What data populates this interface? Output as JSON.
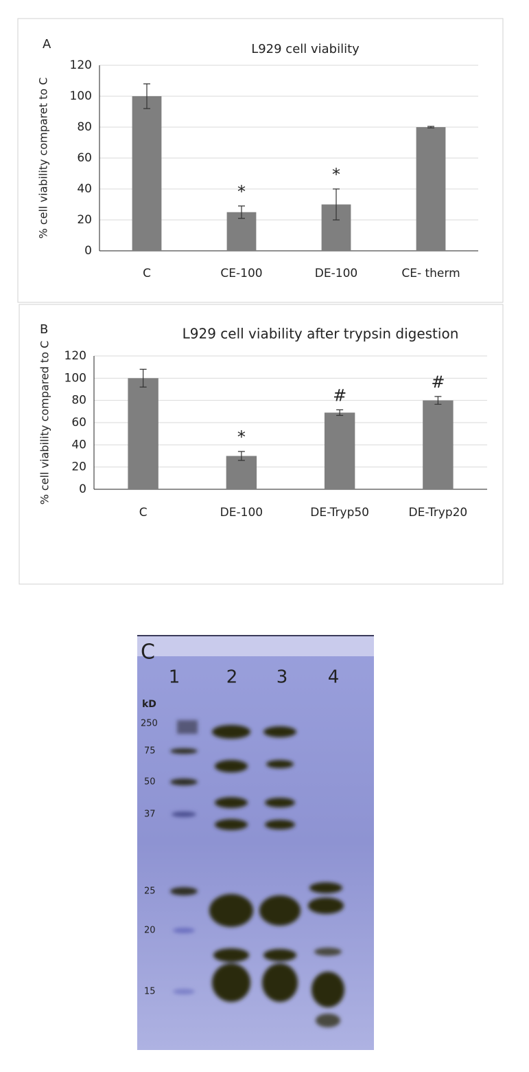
{
  "chart_data": [
    {
      "type": "bar",
      "panel": "A",
      "title": "L929 cell viability",
      "y_label": "% cell viability comparet to C",
      "categories": [
        "C",
        "CE-100",
        "DE-100",
        "CE- therm"
      ],
      "values": [
        100,
        25,
        30,
        80
      ],
      "errors": [
        8,
        4,
        10,
        0.5
      ],
      "markers": [
        null,
        "*",
        "*",
        null
      ],
      "color": "#7f7f7f",
      "ylim": [
        0,
        120
      ],
      "yticks": [
        0,
        20,
        40,
        60,
        80,
        100,
        120
      ],
      "grid": true
    },
    {
      "type": "bar",
      "panel": "B",
      "title": "L929 cell viability after trypsin digestion",
      "y_label": "% cell viability compared to C",
      "categories": [
        "C",
        "DE-100",
        "DE-Tryp50",
        "DE-Tryp20"
      ],
      "values": [
        100,
        30,
        69,
        80
      ],
      "errors": [
        8,
        4,
        2.5,
        3.5
      ],
      "markers": [
        null,
        "*",
        "#",
        "#"
      ],
      "color": "#7f7f7f",
      "ylim": [
        0,
        120
      ],
      "yticks": [
        0,
        20,
        40,
        60,
        80,
        100,
        120
      ],
      "grid": true
    }
  ],
  "gel": {
    "panel": "C",
    "lanes": [
      "1",
      "2",
      "3",
      "4"
    ],
    "unit": "kD",
    "markers": [
      "250",
      "75",
      "50",
      "37",
      "25",
      "20",
      "15"
    ]
  }
}
